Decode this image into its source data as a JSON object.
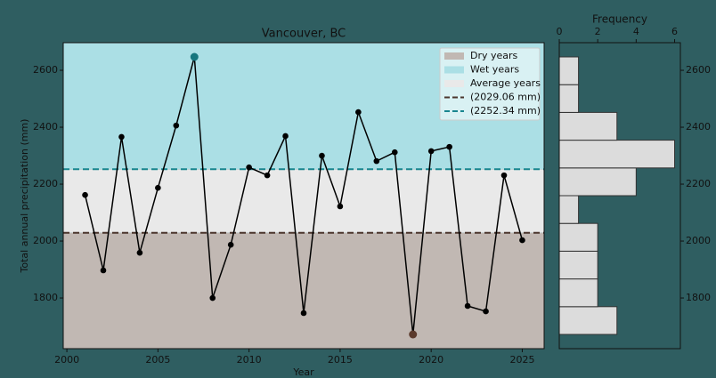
{
  "chart_data": [
    {
      "type": "line",
      "title": "Vancouver, BC",
      "xlabel": "Year",
      "ylabel": "Total annual precipitation (mm)",
      "x": [
        2001,
        2002,
        2003,
        2004,
        2005,
        2006,
        2007,
        2008,
        2009,
        2010,
        2011,
        2012,
        2013,
        2014,
        2015,
        2016,
        2017,
        2018,
        2019,
        2020,
        2021,
        2022,
        2023,
        2024,
        2025
      ],
      "values": [
        2162,
        1897,
        2366,
        1959,
        2187,
        2406,
        2647,
        1800,
        1987,
        2259,
        2231,
        2369,
        1747,
        2300,
        2122,
        2453,
        2281,
        2312,
        1672,
        2316,
        2331,
        1772,
        1753,
        2231,
        2003
      ],
      "color": "#000000",
      "max_color": "#16767e",
      "min_color": "#5b3a2c",
      "bands": [
        {
          "name": "Dry years",
          "color": "#c1b8b3"
        },
        {
          "name": "Wet years",
          "color": "#abdfe5"
        },
        {
          "name": "Average years",
          "color": "#e9e9e9"
        }
      ],
      "thresholds": [
        {
          "value": 2029.06,
          "label": "(2029.06 mm)",
          "color": "#4a352c"
        },
        {
          "value": 2252.34,
          "label": "(2252.34 mm)",
          "color": "#17858f"
        }
      ],
      "xlim": [
        1999.8,
        2026.2
      ],
      "ylim": [
        1622,
        2697
      ],
      "xticks": [
        2000,
        2005,
        2010,
        2015,
        2020,
        2025
      ],
      "yticks": [
        1800,
        2000,
        2200,
        2400,
        2600
      ],
      "legend": "upper right"
    },
    {
      "type": "histogram",
      "orientation": "horizontal",
      "xlabel": "Frequency",
      "bins": [
        1672,
        1769.5,
        1867,
        1964.5,
        2062,
        2159.5,
        2257,
        2354.5,
        2452,
        2549.5,
        2647
      ],
      "values": [
        3,
        2,
        2,
        2,
        1,
        4,
        6,
        3,
        1,
        1
      ],
      "color": "#dcdcdc",
      "xlim": [
        0,
        6.3
      ],
      "xticks": [
        0,
        2,
        4,
        6
      ],
      "ylim": [
        1622,
        2697
      ],
      "yticks": [
        1800,
        2000,
        2200,
        2400,
        2600
      ]
    }
  ]
}
